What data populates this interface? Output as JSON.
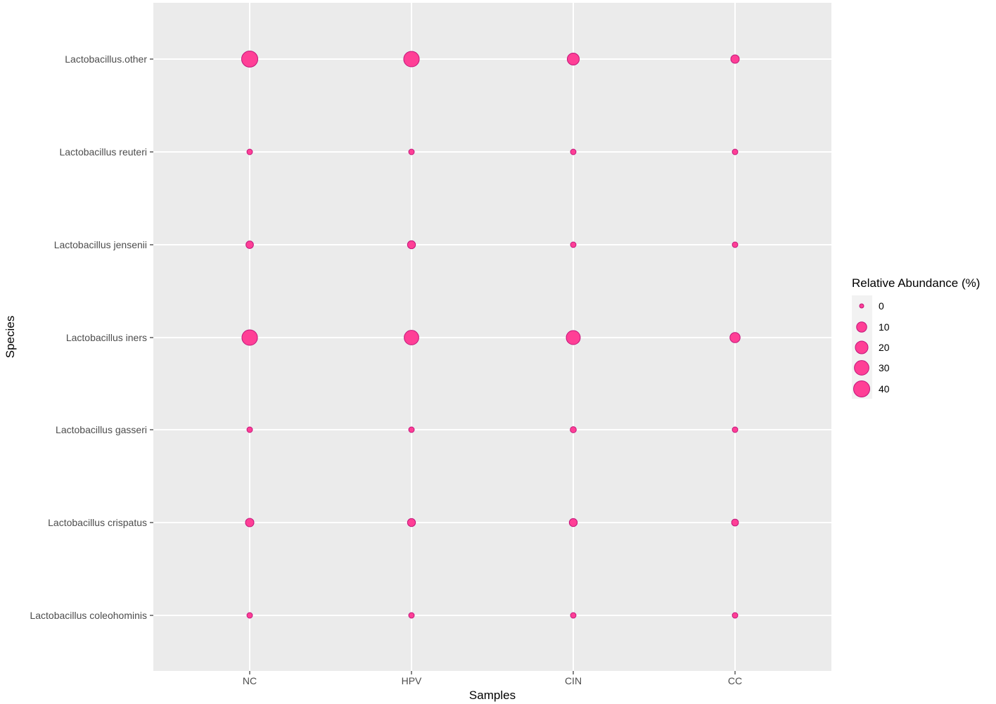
{
  "chart_data": {
    "type": "scatter",
    "subtype": "bubble",
    "title": "",
    "xlabel": "Samples",
    "ylabel": "Species",
    "categories_x": [
      "NC",
      "HPV",
      "CIN",
      "CC"
    ],
    "categories_y": [
      "Lactobacillus.other",
      "Lactobacillus reuteri",
      "Lactobacillus jensenii",
      "Lactobacillus iners",
      "Lactobacillus gasseri",
      "Lactobacillus crispatus",
      "Lactobacillus coleohominis"
    ],
    "size_variable": "Relative Abundance (%)",
    "series": [
      {
        "name": "Lactobacillus.other",
        "values": [
          40,
          36,
          17,
          5
        ]
      },
      {
        "name": "Lactobacillus reuteri",
        "values": [
          0.5,
          0.5,
          0.5,
          0.5
        ]
      },
      {
        "name": "Lactobacillus jensenii",
        "values": [
          3,
          4,
          0.5,
          0.5
        ]
      },
      {
        "name": "Lactobacillus iners",
        "values": [
          36,
          30,
          27,
          10
        ]
      },
      {
        "name": "Lactobacillus gasseri",
        "values": [
          0.5,
          0.5,
          1,
          0.5
        ]
      },
      {
        "name": "Lactobacillus crispatus",
        "values": [
          5,
          4,
          4,
          2
        ]
      },
      {
        "name": "Lactobacillus coleohominis",
        "values": [
          0.5,
          0.5,
          0.5,
          0.5
        ]
      }
    ],
    "legend": {
      "title": "Relative Abundance (%)",
      "position": "right",
      "breaks": [
        0,
        10,
        20,
        30,
        40
      ]
    },
    "grid": true,
    "colors": {
      "point_fill": "#ff3f96",
      "point_stroke": "#c0157a",
      "panel_bg": "#ebebeb",
      "grid": "#ffffff",
      "legend_key_bg": "#f2f2f2"
    }
  }
}
